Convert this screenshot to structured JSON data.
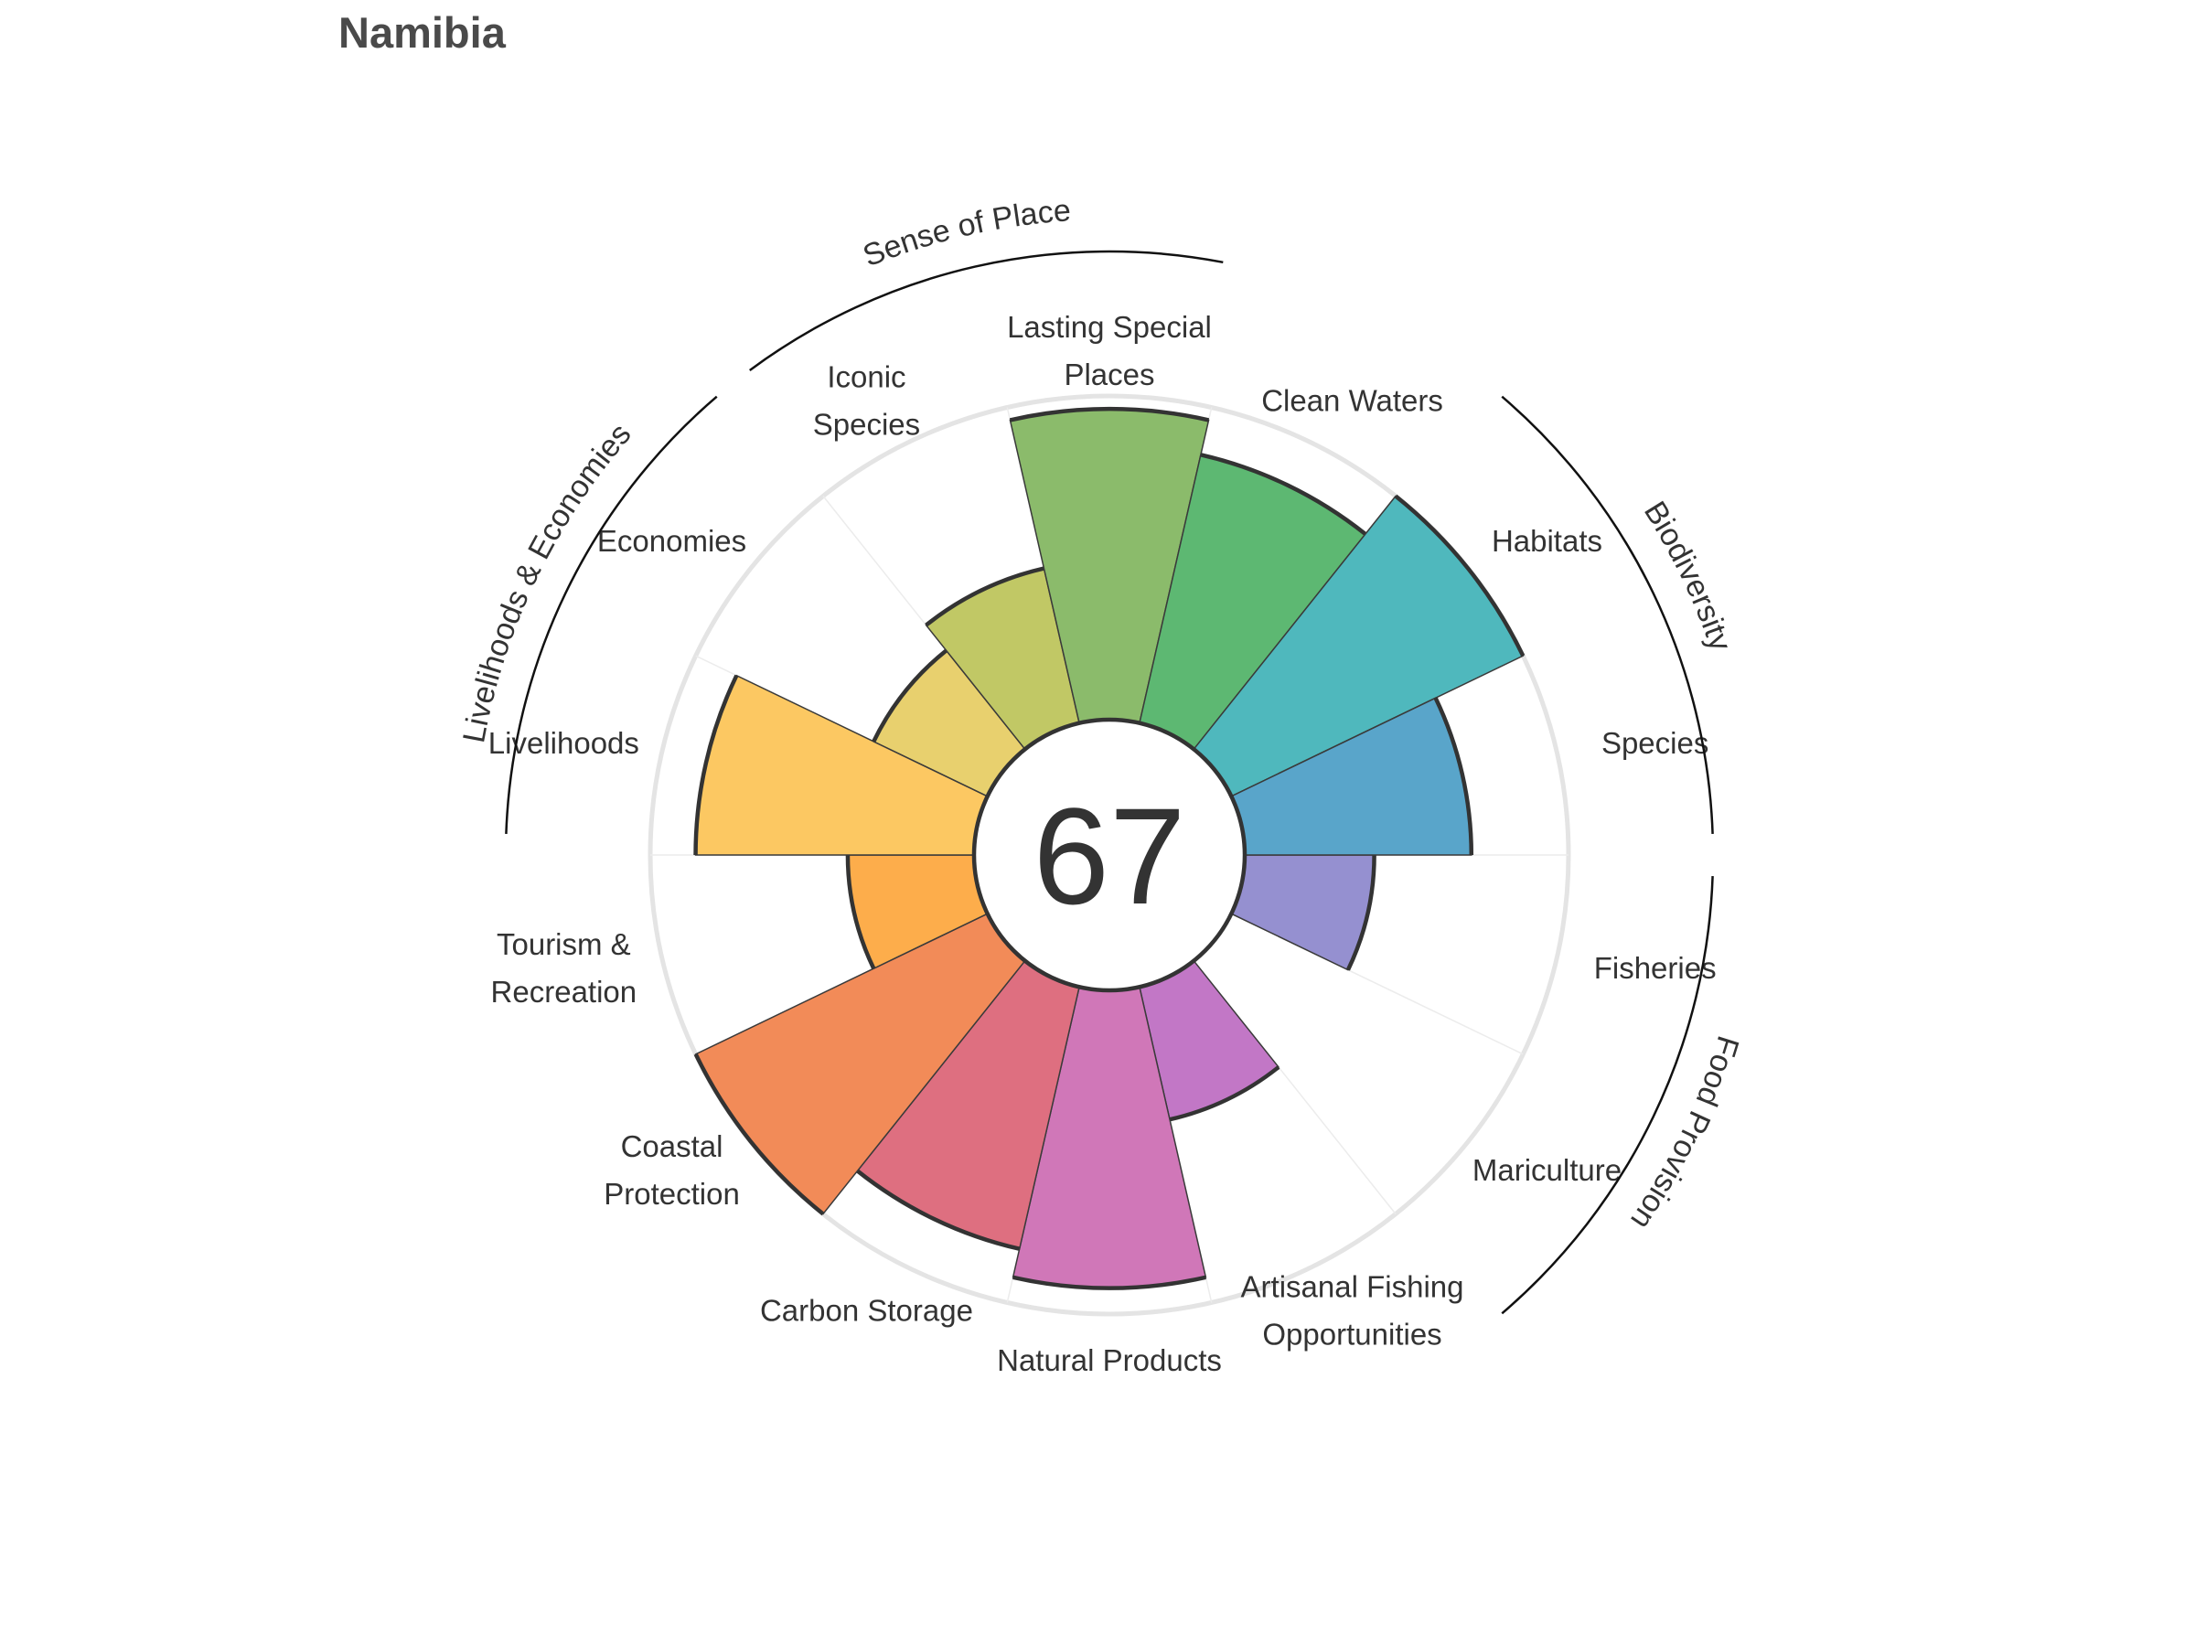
{
  "chart_data": {
    "type": "rose",
    "title": "Namibia",
    "score": "67",
    "range": [
      0,
      100
    ],
    "goals": [
      {
        "key": "Fisheries",
        "lines": [
          "Fisheries"
        ],
        "value": 40,
        "color": "#9590d0"
      },
      {
        "key": "Mariculture",
        "lines": [
          "Mariculture"
        ],
        "value": 0,
        "color": "#9a8fd0"
      },
      {
        "key": "Artisanal Fishing Opportunities",
        "lines": [
          "Artisanal Fishing",
          "Opportunities"
        ],
        "value": 42,
        "color": "#c277c6"
      },
      {
        "key": "Natural Products",
        "lines": [
          "Natural Products"
        ],
        "value": 92,
        "color": "#d077b8"
      },
      {
        "key": "Carbon Storage",
        "lines": [
          "Carbon Storage"
        ],
        "value": 83,
        "color": "#de6f80"
      },
      {
        "key": "Coastal Protection",
        "lines": [
          "Coastal",
          "Protection"
        ],
        "value": 100,
        "color": "#f28b58"
      },
      {
        "key": "Tourism & Recreation",
        "lines": [
          "Tourism &",
          "Recreation"
        ],
        "value": 39,
        "color": "#fdad4b"
      },
      {
        "key": "Livelihoods",
        "lines": [
          "Livelihoods"
        ],
        "value": 86,
        "color": "#fcc862"
      },
      {
        "key": "Economies",
        "lines": [
          "Economies"
        ],
        "value": 39,
        "color": "#e8d06e"
      },
      {
        "key": "Iconic Species",
        "lines": [
          "Iconic",
          "Species"
        ],
        "value": 49,
        "color": "#c1c865"
      },
      {
        "key": "Lasting Special Places",
        "lines": [
          "Lasting Special",
          "Places"
        ],
        "value": 96,
        "color": "#8bbb6b"
      },
      {
        "key": "Clean Waters",
        "lines": [
          "Clean Waters"
        ],
        "value": 85,
        "color": "#5db872"
      },
      {
        "key": "Habitats",
        "lines": [
          "Habitats"
        ],
        "value": 100,
        "color": "#4fb8bd"
      },
      {
        "key": "Species",
        "lines": [
          "Species"
        ],
        "value": 70,
        "color": "#59a5ca"
      }
    ],
    "groups": [
      {
        "name": "Food Provision",
        "from": 0,
        "to": 1
      },
      {
        "name": "Biodiversity",
        "from": 12,
        "to": 13
      },
      {
        "name": "Sense of Place",
        "from": 9,
        "to": 10
      },
      {
        "name": "Livelihoods & Economies",
        "from": 7,
        "to": 8
      }
    ]
  }
}
